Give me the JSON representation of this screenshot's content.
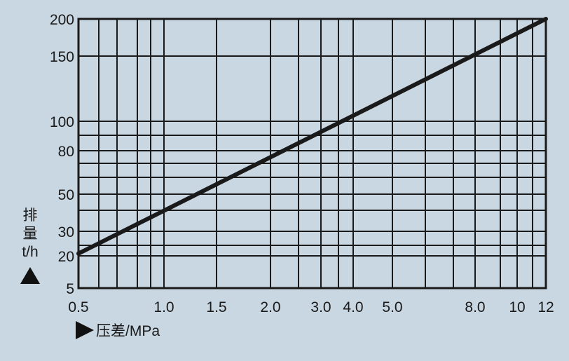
{
  "chart_data": {
    "type": "line",
    "title": "",
    "xlabel": "压差/MPa",
    "ylabel_chars": [
      "排",
      "量"
    ],
    "ylabel_unit": "t/h",
    "x_scale": "log",
    "y_scale": "log",
    "xlim": [
      0.5,
      12
    ],
    "ylim": [
      5,
      200
    ],
    "x_ticks": [
      {
        "value": 0.5,
        "label": "0.5"
      },
      {
        "value": 1.0,
        "label": "1.0"
      },
      {
        "value": 1.5,
        "label": "1.5"
      },
      {
        "value": 2.0,
        "label": "2.0"
      },
      {
        "value": 3.0,
        "label": "3.0"
      },
      {
        "value": 4.0,
        "label": "4.0"
      },
      {
        "value": 5.0,
        "label": "5.0"
      },
      {
        "value": 8.0,
        "label": "8.0"
      },
      {
        "value": 10,
        "label": "10"
      },
      {
        "value": 12,
        "label": "12"
      }
    ],
    "x_gridlines": [
      0.5,
      0.6,
      0.7,
      0.8,
      0.9,
      1.0,
      1.5,
      2.0,
      2.5,
      3.0,
      3.5,
      4.0,
      5.0,
      6.0,
      7.0,
      8.0,
      9.0,
      10,
      11,
      12
    ],
    "y_ticks": [
      {
        "value": 5,
        "label": "5"
      },
      {
        "value": 20,
        "label": "20"
      },
      {
        "value": 30,
        "label": "30"
      },
      {
        "value": 50,
        "label": "50"
      },
      {
        "value": 80,
        "label": "80"
      },
      {
        "value": 100,
        "label": "100"
      },
      {
        "value": 150,
        "label": "150"
      },
      {
        "value": 200,
        "label": "200"
      }
    ],
    "y_gridlines": [
      5,
      20,
      25,
      30,
      40,
      50,
      60,
      70,
      80,
      90,
      100,
      150,
      200
    ],
    "grid": true,
    "series": [
      {
        "x": [
          0.5,
          1.0,
          1.5,
          2.0,
          3.0,
          4.0,
          5.0,
          8.0,
          12
        ],
        "y": [
          21,
          40,
          56,
          71,
          80,
          90,
          100,
          150,
          200
        ]
      }
    ]
  },
  "colors": {
    "background": "#c9d7e2",
    "grid": "#1a1a1a",
    "series": "#1a1a1a"
  }
}
